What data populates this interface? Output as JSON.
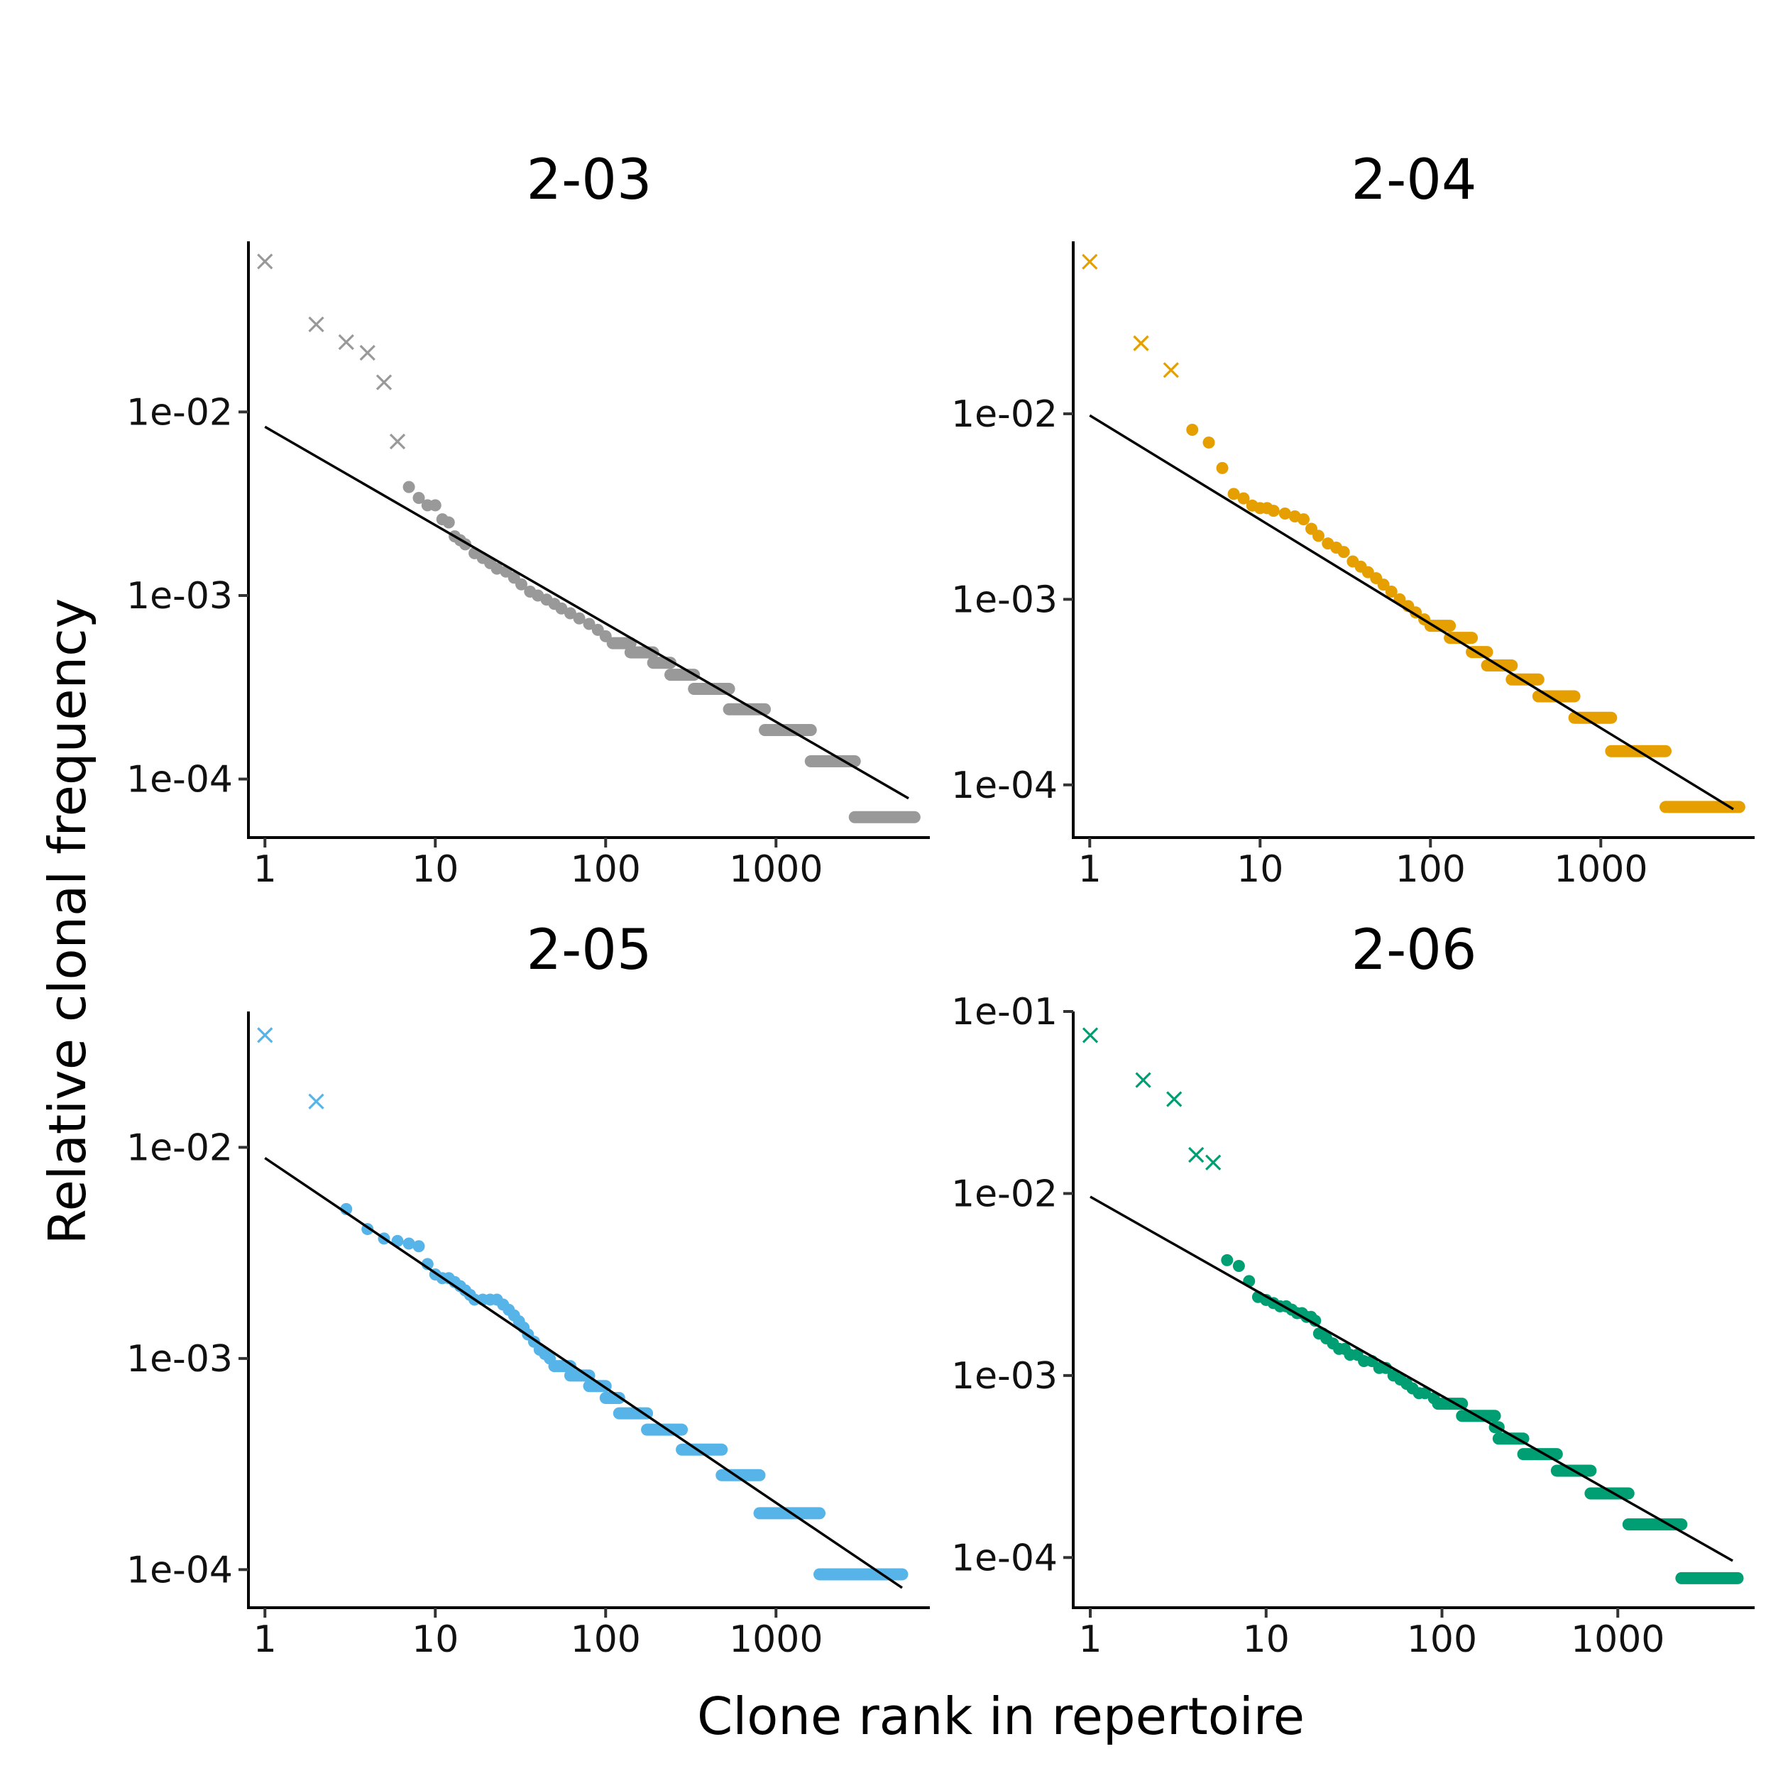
{
  "figure": {
    "xlabel": "Clone rank in repertoire",
    "ylabel": "Relative clonal frequency"
  },
  "chart_data": [
    {
      "type": "scatter",
      "title": "2-03",
      "color": "#999999",
      "x_scale": "log10",
      "y_scale": "log10",
      "xlim": [
        0.8,
        8000
      ],
      "ylim": [
        4.8e-05,
        0.085
      ],
      "xticks": [
        1,
        10,
        100,
        1000
      ],
      "xtick_labels": [
        "1",
        "10",
        "100",
        "1000"
      ],
      "yticks": [
        0.01,
        0.001,
        0.0001
      ],
      "ytick_labels": [
        "1e-02",
        "1e-03",
        "1e-04"
      ],
      "outliers": [
        {
          "x": 1,
          "y": 0.066
        },
        {
          "x": 2,
          "y": 0.03
        },
        {
          "x": 3,
          "y": 0.024
        },
        {
          "x": 4,
          "y": 0.021
        },
        {
          "x": 5,
          "y": 0.0145
        },
        {
          "x": 6,
          "y": 0.0069
        }
      ],
      "points": [
        [
          7,
          0.0039
        ],
        [
          8,
          0.0034
        ],
        [
          9,
          0.0031
        ],
        [
          10,
          0.0031
        ],
        [
          11,
          0.0026
        ],
        [
          12,
          0.0025
        ],
        [
          13,
          0.0021
        ],
        [
          14,
          0.002
        ],
        [
          15,
          0.0019
        ],
        [
          17,
          0.0017
        ],
        [
          19,
          0.0016
        ],
        [
          21,
          0.0015
        ],
        [
          23,
          0.0014
        ],
        [
          26,
          0.00135
        ],
        [
          29,
          0.00125
        ],
        [
          32,
          0.00115
        ],
        [
          36,
          0.00105
        ],
        [
          40,
          0.001
        ],
        [
          45,
          0.00095
        ],
        [
          50,
          0.0009
        ],
        [
          55,
          0.00085
        ],
        [
          62,
          0.0008
        ],
        [
          70,
          0.00075
        ],
        [
          80,
          0.0007
        ],
        [
          90,
          0.00065
        ],
        [
          100,
          0.0006
        ]
      ],
      "levels": [
        {
          "y": 0.00055,
          "x_start": 110,
          "x_end": 140
        },
        {
          "y": 0.00049,
          "x_start": 140,
          "x_end": 190
        },
        {
          "y": 0.00043,
          "x_start": 190,
          "x_end": 240
        },
        {
          "y": 0.00037,
          "x_start": 240,
          "x_end": 330
        },
        {
          "y": 0.00031,
          "x_start": 330,
          "x_end": 530
        },
        {
          "y": 0.00024,
          "x_start": 530,
          "x_end": 860
        },
        {
          "y": 0.000185,
          "x_start": 860,
          "x_end": 1600
        },
        {
          "y": 0.000125,
          "x_start": 1600,
          "x_end": 2900
        },
        {
          "y": 6.2e-05,
          "x_start": 2900,
          "x_end": 6500
        }
      ],
      "fit_line": {
        "x": [
          1,
          6000
        ],
        "y": [
          0.0083,
          7.85e-05
        ]
      }
    },
    {
      "type": "scatter",
      "title": "2-04",
      "color": "#E69F00",
      "x_scale": "log10",
      "y_scale": "log10",
      "xlim": [
        0.8,
        8000
      ],
      "ylim": [
        5.2e-05,
        0.085
      ],
      "xticks": [
        1,
        10,
        100,
        1000
      ],
      "xtick_labels": [
        "1",
        "10",
        "100",
        "1000"
      ],
      "yticks": [
        0.01,
        0.001,
        0.0001
      ],
      "ytick_labels": [
        "1e-02",
        "1e-03",
        "1e-04"
      ],
      "outliers": [
        {
          "x": 1,
          "y": 0.066
        },
        {
          "x": 2,
          "y": 0.024
        },
        {
          "x": 3,
          "y": 0.0172
        }
      ],
      "points": [
        [
          4,
          0.0082
        ],
        [
          5,
          0.007
        ],
        [
          6,
          0.0051
        ],
        [
          7,
          0.0037
        ],
        [
          8,
          0.0035
        ],
        [
          9,
          0.0032
        ],
        [
          10,
          0.0031
        ],
        [
          11,
          0.0031
        ],
        [
          12,
          0.003
        ],
        [
          14,
          0.0029
        ],
        [
          16,
          0.0028
        ],
        [
          18,
          0.0027
        ],
        [
          20,
          0.0024
        ],
        [
          22,
          0.0022
        ],
        [
          25,
          0.002
        ],
        [
          28,
          0.0019
        ],
        [
          31,
          0.0018
        ],
        [
          35,
          0.0016
        ],
        [
          39,
          0.0015
        ],
        [
          43,
          0.0014
        ],
        [
          48,
          0.0013
        ],
        [
          53,
          0.0012
        ],
        [
          59,
          0.0011
        ],
        [
          66,
          0.001
        ],
        [
          74,
          0.00092
        ],
        [
          82,
          0.00085
        ],
        [
          92,
          0.00078
        ]
      ],
      "levels": [
        {
          "y": 0.00072,
          "x_start": 100,
          "x_end": 130
        },
        {
          "y": 0.00062,
          "x_start": 130,
          "x_end": 175
        },
        {
          "y": 0.00052,
          "x_start": 175,
          "x_end": 215
        },
        {
          "y": 0.00044,
          "x_start": 215,
          "x_end": 300
        },
        {
          "y": 0.00037,
          "x_start": 300,
          "x_end": 430
        },
        {
          "y": 0.0003,
          "x_start": 430,
          "x_end": 700
        },
        {
          "y": 0.00023,
          "x_start": 700,
          "x_end": 1150
        },
        {
          "y": 0.000152,
          "x_start": 1150,
          "x_end": 2400
        },
        {
          "y": 7.6e-05,
          "x_start": 2400,
          "x_end": 6500
        }
      ],
      "fit_line": {
        "x": [
          1,
          6000
        ],
        "y": [
          0.0098,
          7.4e-05
        ]
      }
    },
    {
      "type": "scatter",
      "title": "2-05",
      "color": "#56B4E9",
      "x_scale": "log10",
      "y_scale": "log10",
      "xlim": [
        0.8,
        8000
      ],
      "ylim": [
        6.6e-05,
        0.044
      ],
      "xticks": [
        1,
        10,
        100,
        1000
      ],
      "xtick_labels": [
        "1",
        "10",
        "100",
        "1000"
      ],
      "yticks": [
        0.01,
        0.001,
        0.0001
      ],
      "ytick_labels": [
        "1e-02",
        "1e-03",
        "1e-04"
      ],
      "outliers": [
        {
          "x": 1,
          "y": 0.034
        },
        {
          "x": 2,
          "y": 0.0165
        }
      ],
      "points": [
        [
          3,
          0.0051
        ],
        [
          4,
          0.0041
        ],
        [
          5,
          0.0037
        ],
        [
          6,
          0.0036
        ],
        [
          7,
          0.0035
        ],
        [
          8,
          0.0034
        ],
        [
          9,
          0.0028
        ],
        [
          10,
          0.0025
        ],
        [
          11,
          0.0024
        ],
        [
          12,
          0.0024
        ],
        [
          13,
          0.0023
        ],
        [
          14,
          0.0022
        ],
        [
          15,
          0.0021
        ],
        [
          16,
          0.002
        ],
        [
          17,
          0.0019
        ],
        [
          19,
          0.0019
        ],
        [
          21,
          0.0019
        ],
        [
          23,
          0.0019
        ],
        [
          25,
          0.0018
        ],
        [
          27,
          0.0017
        ],
        [
          29,
          0.0016
        ],
        [
          31,
          0.0015
        ],
        [
          33,
          0.0014
        ],
        [
          35,
          0.0013
        ],
        [
          38,
          0.0012
        ],
        [
          41,
          0.0011
        ],
        [
          44,
          0.00105
        ],
        [
          47,
          0.001
        ]
      ],
      "levels": [
        {
          "y": 0.00092,
          "x_start": 50,
          "x_end": 62
        },
        {
          "y": 0.00083,
          "x_start": 62,
          "x_end": 80
        },
        {
          "y": 0.00074,
          "x_start": 80,
          "x_end": 100
        },
        {
          "y": 0.00065,
          "x_start": 100,
          "x_end": 120
        },
        {
          "y": 0.00055,
          "x_start": 120,
          "x_end": 175
        },
        {
          "y": 0.00046,
          "x_start": 175,
          "x_end": 280
        },
        {
          "y": 0.00037,
          "x_start": 280,
          "x_end": 480
        },
        {
          "y": 0.00028,
          "x_start": 480,
          "x_end": 800
        },
        {
          "y": 0.000185,
          "x_start": 800,
          "x_end": 1800
        },
        {
          "y": 9.5e-05,
          "x_start": 1800,
          "x_end": 5500
        }
      ],
      "fit_line": {
        "x": [
          1,
          5500
        ],
        "y": [
          0.0089,
          8.2e-05
        ]
      }
    },
    {
      "type": "scatter",
      "title": "2-06",
      "color": "#009E73",
      "x_scale": "log10",
      "y_scale": "log10",
      "xlim": [
        0.8,
        6000
      ],
      "ylim": [
        5.3e-05,
        0.1
      ],
      "xticks": [
        1,
        10,
        100,
        1000
      ],
      "xtick_labels": [
        "1",
        "10",
        "100",
        "1000"
      ],
      "yticks": [
        0.1,
        0.01,
        0.001,
        0.0001
      ],
      "ytick_labels": [
        "1e-01",
        "1e-02",
        "1e-03",
        "1e-04"
      ],
      "outliers": [
        {
          "x": 1,
          "y": 0.074
        },
        {
          "x": 2,
          "y": 0.042
        },
        {
          "x": 3,
          "y": 0.033
        },
        {
          "x": 4,
          "y": 0.0163
        },
        {
          "x": 5,
          "y": 0.0148
        }
      ],
      "points": [
        [
          6,
          0.0043
        ],
        [
          7,
          0.004
        ],
        [
          8,
          0.0033
        ],
        [
          9,
          0.0027
        ],
        [
          10,
          0.0026
        ],
        [
          11,
          0.0025
        ],
        [
          12,
          0.0024
        ],
        [
          13,
          0.0024
        ],
        [
          14,
          0.0023
        ],
        [
          15,
          0.0022
        ],
        [
          16,
          0.0022
        ],
        [
          17,
          0.0021
        ],
        [
          18,
          0.0021
        ],
        [
          19,
          0.002
        ],
        [
          20,
          0.0017
        ],
        [
          21,
          0.0017
        ],
        [
          22,
          0.0016
        ],
        [
          24,
          0.0015
        ],
        [
          26,
          0.0014
        ],
        [
          28,
          0.0014
        ],
        [
          30,
          0.0013
        ],
        [
          33,
          0.0013
        ],
        [
          36,
          0.0012
        ],
        [
          40,
          0.0012
        ],
        [
          44,
          0.0011
        ],
        [
          48,
          0.0011
        ],
        [
          53,
          0.001
        ],
        [
          58,
          0.00095
        ],
        [
          63,
          0.0009
        ],
        [
          68,
          0.00085
        ],
        [
          74,
          0.0008
        ],
        [
          80,
          0.0008
        ],
        [
          90,
          0.00075
        ]
      ],
      "levels": [
        {
          "y": 0.0007,
          "x_start": 95,
          "x_end": 130
        },
        {
          "y": 0.0006,
          "x_start": 130,
          "x_end": 200
        },
        {
          "y": 0.00052,
          "x_start": 200,
          "x_end": 210
        },
        {
          "y": 0.00045,
          "x_start": 210,
          "x_end": 290
        },
        {
          "y": 0.00037,
          "x_start": 290,
          "x_end": 450
        },
        {
          "y": 0.0003,
          "x_start": 450,
          "x_end": 700
        },
        {
          "y": 0.000225,
          "x_start": 700,
          "x_end": 1150
        },
        {
          "y": 0.000152,
          "x_start": 1150,
          "x_end": 2300
        },
        {
          "y": 7.7e-05,
          "x_start": 2300,
          "x_end": 4800
        }
      ],
      "fit_line": {
        "x": [
          1,
          4500
        ],
        "y": [
          0.0096,
          9.6e-05
        ]
      }
    }
  ]
}
